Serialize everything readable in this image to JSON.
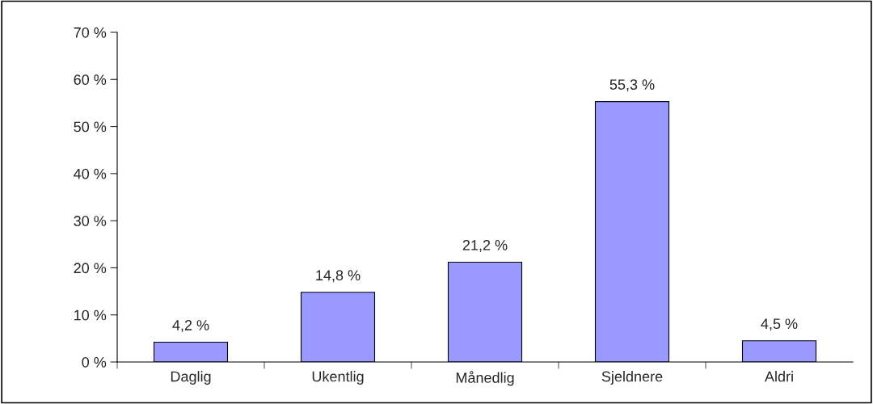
{
  "chart_data": {
    "type": "bar",
    "categories": [
      "Daglig",
      "Ukentlig",
      "Månedlig",
      "Sjeldnere",
      "Aldri"
    ],
    "values": [
      4.2,
      14.8,
      21.2,
      55.3,
      4.5
    ],
    "value_labels": [
      "4,2 %",
      "14,8 %",
      "21,2 %",
      "55,3 %",
      "4,5 %"
    ],
    "color": "#9999ff",
    "ylim": [
      0,
      70
    ],
    "yticks": [
      {
        "value": 0,
        "label": "0 %"
      },
      {
        "value": 10,
        "label": "10 %"
      },
      {
        "value": 20,
        "label": "20 %"
      },
      {
        "value": 30,
        "label": "30 %"
      },
      {
        "value": 40,
        "label": "40 %"
      },
      {
        "value": 50,
        "label": "50 %"
      },
      {
        "value": 60,
        "label": "60 %"
      },
      {
        "value": 70,
        "label": "70 %"
      }
    ],
    "grid": false,
    "legend": false
  }
}
